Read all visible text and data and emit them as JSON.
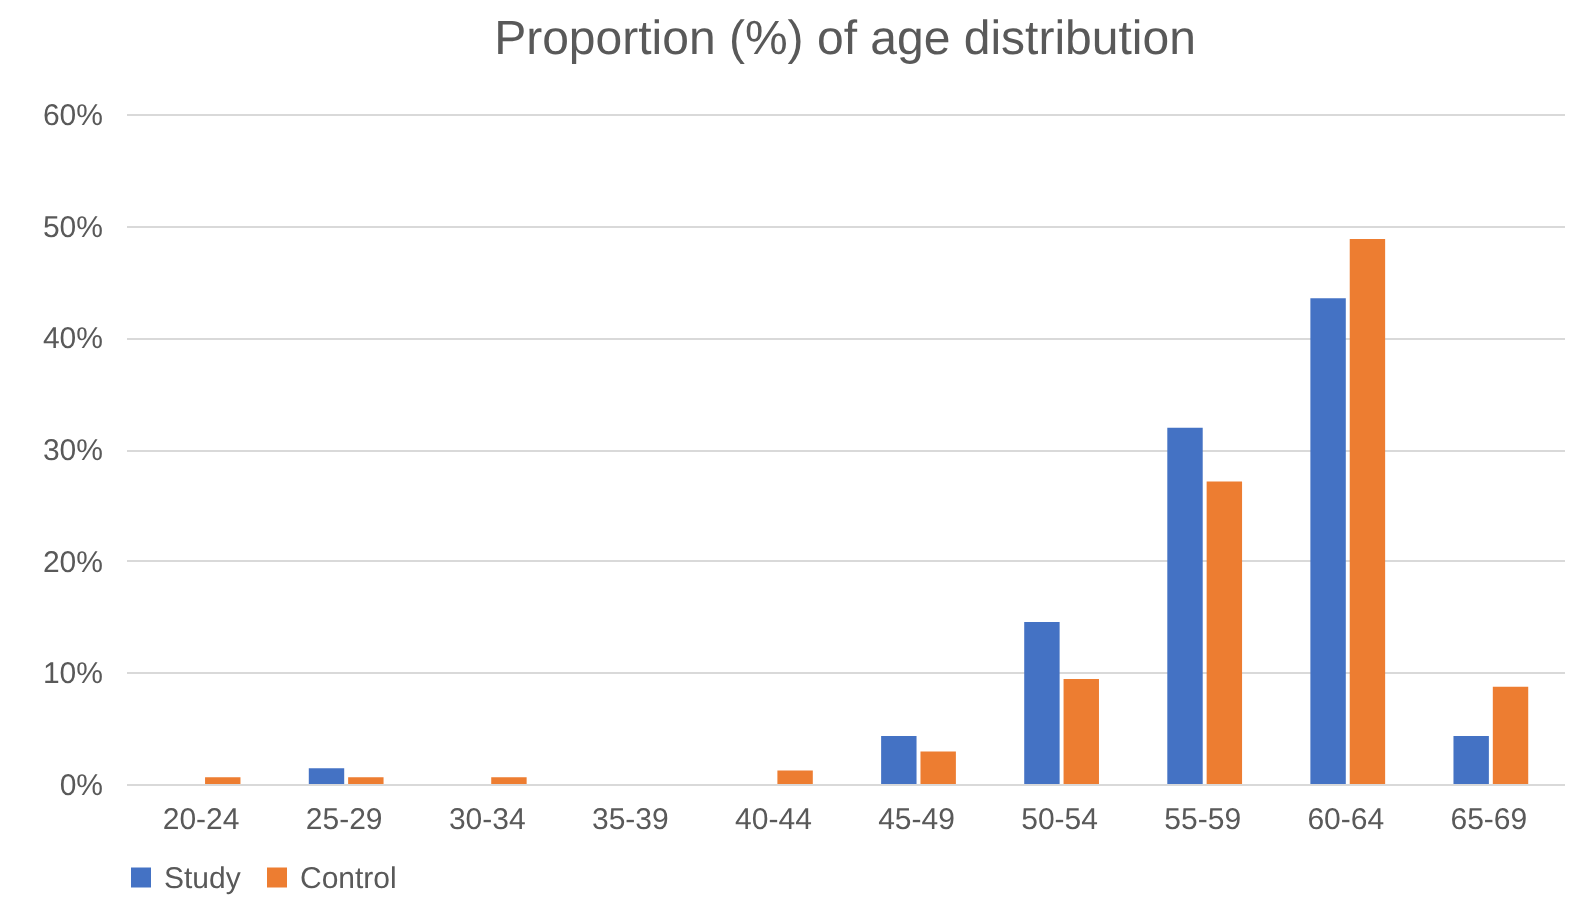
{
  "chart_data": {
    "type": "bar",
    "title": "Proportion (%) of age distribution",
    "categories": [
      "20-24",
      "25-29",
      "30-34",
      "35-39",
      "40-44",
      "45-49",
      "50-54",
      "55-59",
      "60-64",
      "65-69"
    ],
    "series": [
      {
        "name": "Study",
        "color": "#4472c4",
        "values": [
          0,
          1.4,
          0,
          0,
          0,
          4.3,
          14.5,
          31.9,
          43.5,
          4.3
        ]
      },
      {
        "name": "Control",
        "color": "#ed7d31",
        "values": [
          0.6,
          0.6,
          0.6,
          0,
          1.2,
          2.9,
          9.4,
          27.1,
          48.8,
          8.7
        ]
      }
    ],
    "ylim": [
      0,
      60
    ],
    "yticks": [
      {
        "value": 0,
        "label": "0%"
      },
      {
        "value": 10,
        "label": "10%"
      },
      {
        "value": 20,
        "label": "20%"
      },
      {
        "value": 30,
        "label": "30%"
      },
      {
        "value": 40,
        "label": "40%"
      },
      {
        "value": 50,
        "label": "50%"
      },
      {
        "value": 60,
        "label": "60%"
      }
    ],
    "grid": "y",
    "legend": "bottom"
  }
}
